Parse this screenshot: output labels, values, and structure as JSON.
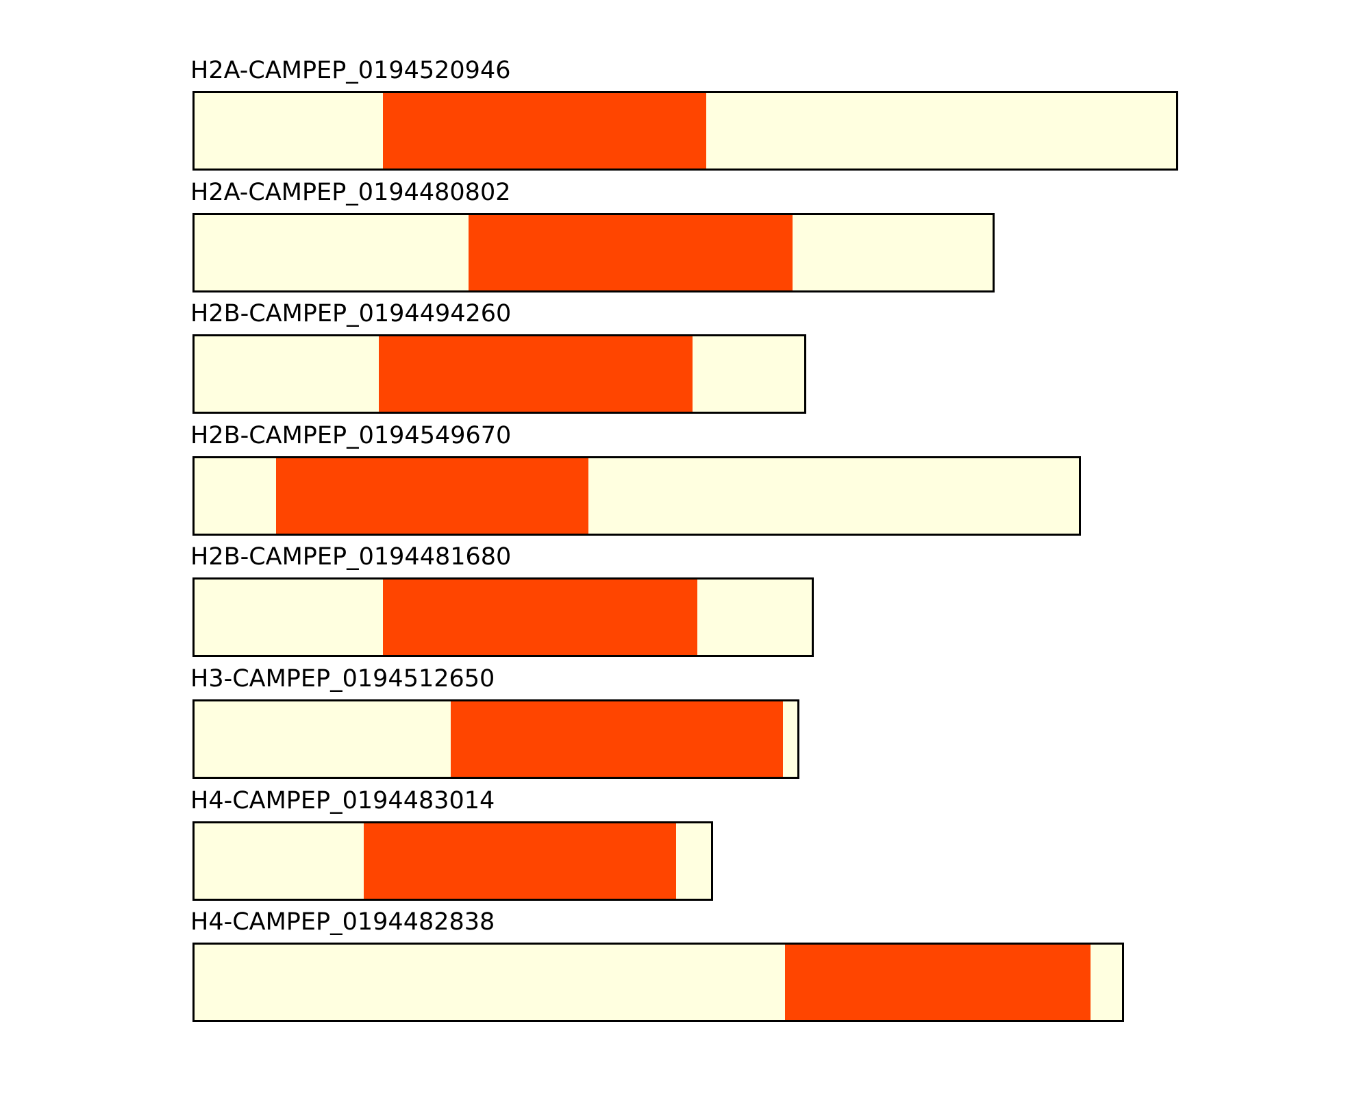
{
  "page": {
    "background": "#FFFFFF"
  },
  "figure": {
    "colors": {
      "bar_fill": "#FFFFE0",
      "highlight_fill": "#FF4500",
      "bar_border": "#000000",
      "label_color": "#000000"
    }
  },
  "chart_data": {
    "type": "bar",
    "subtype": "sequence-feature-map",
    "orientation": "horizontal",
    "title": "",
    "xlabel": "",
    "ylabel": "",
    "axes_visible": false,
    "grid": false,
    "legend": false,
    "units": "fraction of longest sequence bar (no numeric axis shown in figure)",
    "categories": [
      "H2A-CAMPEP_0194520946",
      "H2A-CAMPEP_0194480802",
      "H2B-CAMPEP_0194494260",
      "H2B-CAMPEP_0194549670",
      "H2B-CAMPEP_0194481680",
      "H3-CAMPEP_0194512650",
      "H4-CAMPEP_0194483014",
      "H4-CAMPEP_0194482838"
    ],
    "rows": [
      {
        "label": "H2A-CAMPEP_0194520946",
        "bar_length": 1.0,
        "highlight_start": 0.193,
        "highlight_end": 0.521
      },
      {
        "label": "H2A-CAMPEP_0194480802",
        "bar_length": 0.814,
        "highlight_start": 0.28,
        "highlight_end": 0.609
      },
      {
        "label": "H2B-CAMPEP_0194494260",
        "bar_length": 0.623,
        "highlight_start": 0.189,
        "highlight_end": 0.507
      },
      {
        "label": "H2B-CAMPEP_0194549670",
        "bar_length": 0.901,
        "highlight_start": 0.085,
        "highlight_end": 0.402
      },
      {
        "label": "H2B-CAMPEP_0194481680",
        "bar_length": 0.63,
        "highlight_start": 0.193,
        "highlight_end": 0.512
      },
      {
        "label": "H3-CAMPEP_0194512650",
        "bar_length": 0.616,
        "highlight_start": 0.262,
        "highlight_end": 0.599
      },
      {
        "label": "H4-CAMPEP_0194483014",
        "bar_length": 0.528,
        "highlight_start": 0.174,
        "highlight_end": 0.491
      },
      {
        "label": "H4-CAMPEP_0194482838",
        "bar_length": 0.945,
        "highlight_start": 0.601,
        "highlight_end": 0.911
      }
    ]
  }
}
